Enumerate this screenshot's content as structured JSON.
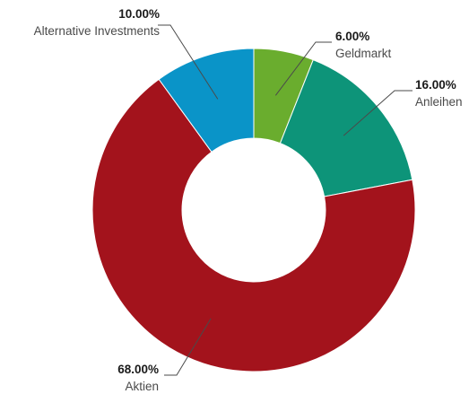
{
  "chart_data": {
    "type": "pie",
    "variant": "donut",
    "categories": [
      "Geldmarkt",
      "Anleihen",
      "Aktien",
      "Alternative Investments"
    ],
    "values": [
      6,
      16,
      68,
      10
    ],
    "value_labels": [
      "6.00%",
      "16.00%",
      "68.00%",
      "10.00%"
    ],
    "colors": [
      "#6aad2e",
      "#0d9479",
      "#a3131c",
      "#0a94c8"
    ],
    "start": "top, clockwise",
    "legend": "none (direct labels with leader lines)"
  }
}
